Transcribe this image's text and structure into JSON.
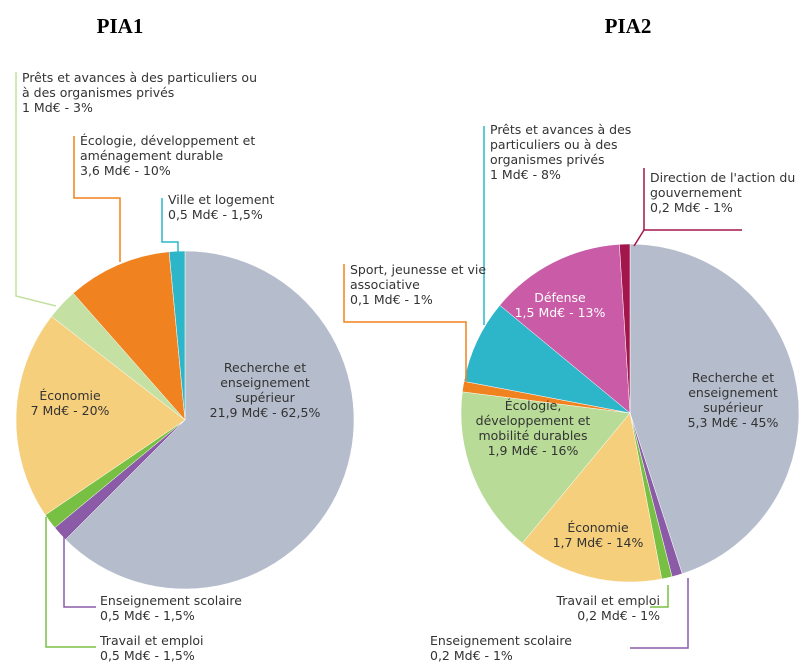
{
  "chart_data": [
    {
      "type": "pie",
      "title": "PIA1",
      "categories": [
        "Recherche et enseignement supérieur",
        "Enseignement scolaire",
        "Travail et emploi",
        "Économie",
        "Prêts et avances à des particuliers ou à des organismes privés",
        "Écologie, développement et aménagement durable",
        "Ville et logement"
      ],
      "values": [
        62.5,
        1.5,
        1.5,
        20,
        3,
        10,
        1.5
      ],
      "value_labels": [
        "21,9 Md€ - 62,5%",
        "0,5 Md€ - 1,5%",
        "0,5 Md€ - 1,5%",
        "7 Md€ - 20%",
        "1 Md€ - 3%",
        "3,6 Md€ - 10%",
        "0,5 Md€ - 1,5%"
      ],
      "colors": [
        "#b5bccb",
        "#8c5ba8",
        "#78c043",
        "#f6cf7c",
        "#c4e0a2",
        "#f0821f",
        "#2db5c9"
      ]
    },
    {
      "type": "pie",
      "title": "PIA2",
      "categories": [
        "Recherche et enseignement supérieur",
        "Enseignement scolaire",
        "Travail et emploi",
        "Économie",
        "Écologie, développement et mobilité durables",
        "Sport, jeunesse et vie associative",
        "Prêts et avances à des particuliers ou à des organismes privés",
        "Défense",
        "Direction de l'action du gouvernement"
      ],
      "values": [
        45,
        1,
        1,
        14,
        16,
        1,
        8,
        13,
        1
      ],
      "value_labels": [
        "5,3 Md€ - 45%",
        "0,2 Md€ - 1%",
        "0,2 Md€ - 1%",
        "1,7 Md€ - 14%",
        "1,9 Md€ - 16%",
        "0,1 Md€ - 1%",
        "1 Md€ - 8%",
        "1,5 Md€ - 13%",
        "0,2 Md€ - 1%"
      ],
      "colors": [
        "#b5bccb",
        "#8c5ba8",
        "#78c043",
        "#f6cf7c",
        "#b8dc97",
        "#f0821f",
        "#2db5c9",
        "#c95ba7",
        "#a3164c"
      ]
    }
  ]
}
